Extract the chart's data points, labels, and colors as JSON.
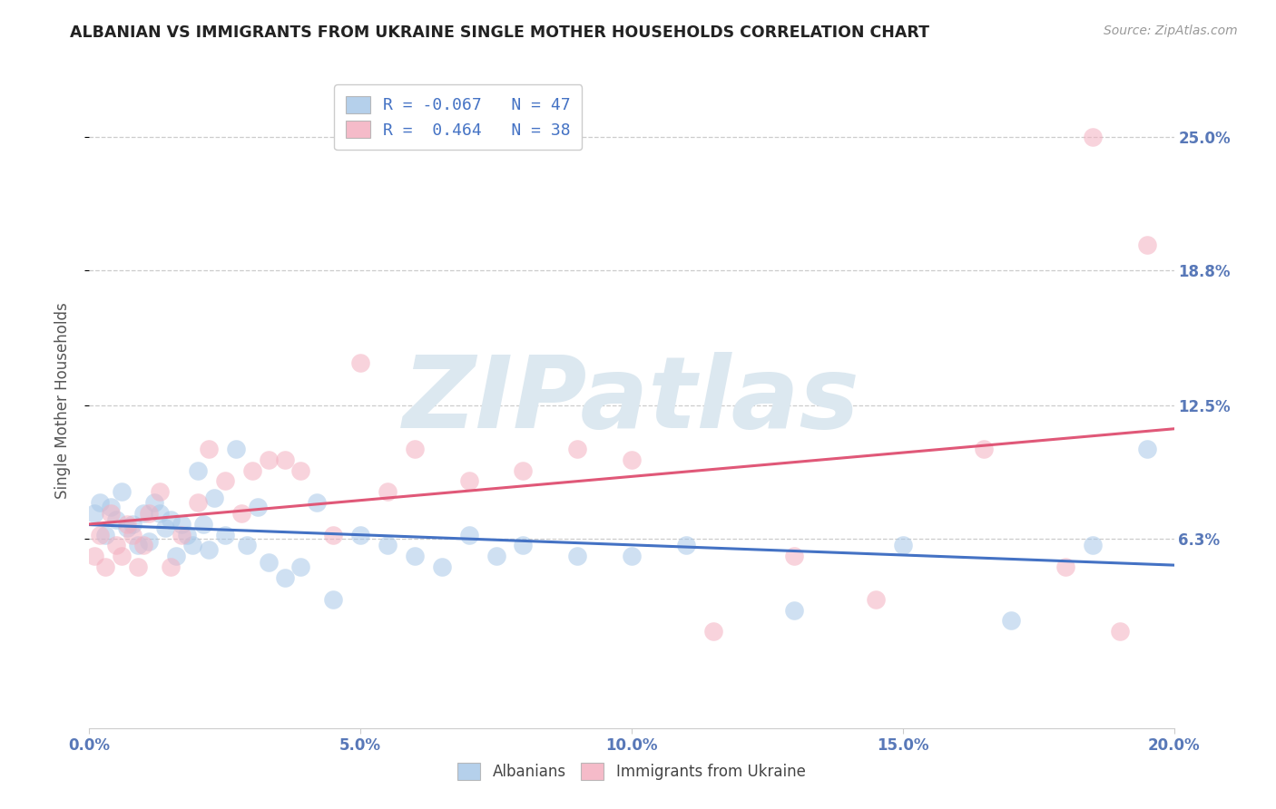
{
  "title": "ALBANIAN VS IMMIGRANTS FROM UKRAINE SINGLE MOTHER HOUSEHOLDS CORRELATION CHART",
  "source": "Source: ZipAtlas.com",
  "ylabel": "Single Mother Households",
  "xlabel_ticks": [
    "0.0%",
    "5.0%",
    "10.0%",
    "15.0%",
    "20.0%"
  ],
  "xlabel_vals": [
    0.0,
    5.0,
    10.0,
    15.0,
    20.0
  ],
  "ytick_labels": [
    "25.0%",
    "18.8%",
    "12.5%",
    "6.3%"
  ],
  "ytick_vals": [
    25.0,
    18.8,
    12.5,
    6.3
  ],
  "xlim": [
    0.0,
    20.0
  ],
  "ylim": [
    -2.5,
    28.0
  ],
  "R1": -0.067,
  "N1": 47,
  "R2": 0.464,
  "N2": 38,
  "blue_color": "#a8c8e8",
  "pink_color": "#f4b0c0",
  "blue_line_color": "#4472c4",
  "pink_line_color": "#e05878",
  "watermark": "ZIPatlas",
  "watermark_color": "#dce8f0",
  "title_color": "#222222",
  "axis_label_color": "#555555",
  "tick_color": "#5878b8",
  "grid_color": "#cccccc",
  "albanians_x": [
    0.1,
    0.2,
    0.3,
    0.4,
    0.5,
    0.6,
    0.7,
    0.8,
    0.9,
    1.0,
    1.1,
    1.2,
    1.3,
    1.4,
    1.5,
    1.6,
    1.7,
    1.8,
    1.9,
    2.0,
    2.1,
    2.2,
    2.3,
    2.5,
    2.7,
    2.9,
    3.1,
    3.3,
    3.6,
    3.9,
    4.2,
    4.5,
    5.0,
    5.5,
    6.0,
    6.5,
    7.0,
    7.5,
    8.0,
    9.0,
    10.0,
    11.0,
    13.0,
    15.0,
    17.0,
    18.5,
    19.5
  ],
  "albanians_y": [
    7.5,
    8.0,
    6.5,
    7.8,
    7.2,
    8.5,
    6.8,
    7.0,
    6.0,
    7.5,
    6.2,
    8.0,
    7.5,
    6.8,
    7.2,
    5.5,
    7.0,
    6.5,
    6.0,
    9.5,
    7.0,
    5.8,
    8.2,
    6.5,
    10.5,
    6.0,
    7.8,
    5.2,
    4.5,
    5.0,
    8.0,
    3.5,
    6.5,
    6.0,
    5.5,
    5.0,
    6.5,
    5.5,
    6.0,
    5.5,
    5.5,
    6.0,
    3.0,
    6.0,
    2.5,
    6.0,
    10.5
  ],
  "ukraine_x": [
    0.1,
    0.2,
    0.3,
    0.4,
    0.5,
    0.6,
    0.7,
    0.8,
    0.9,
    1.0,
    1.1,
    1.3,
    1.5,
    1.7,
    2.0,
    2.2,
    2.5,
    2.8,
    3.0,
    3.3,
    3.6,
    3.9,
    4.5,
    5.0,
    5.5,
    6.0,
    7.0,
    8.0,
    9.0,
    10.0,
    11.5,
    13.0,
    14.5,
    16.5,
    18.0,
    18.5,
    19.0,
    19.5
  ],
  "ukraine_y": [
    5.5,
    6.5,
    5.0,
    7.5,
    6.0,
    5.5,
    7.0,
    6.5,
    5.0,
    6.0,
    7.5,
    8.5,
    5.0,
    6.5,
    8.0,
    10.5,
    9.0,
    7.5,
    9.5,
    10.0,
    10.0,
    9.5,
    6.5,
    14.5,
    8.5,
    10.5,
    9.0,
    9.5,
    10.5,
    10.0,
    2.0,
    5.5,
    3.5,
    10.5,
    5.0,
    25.0,
    2.0,
    20.0
  ]
}
